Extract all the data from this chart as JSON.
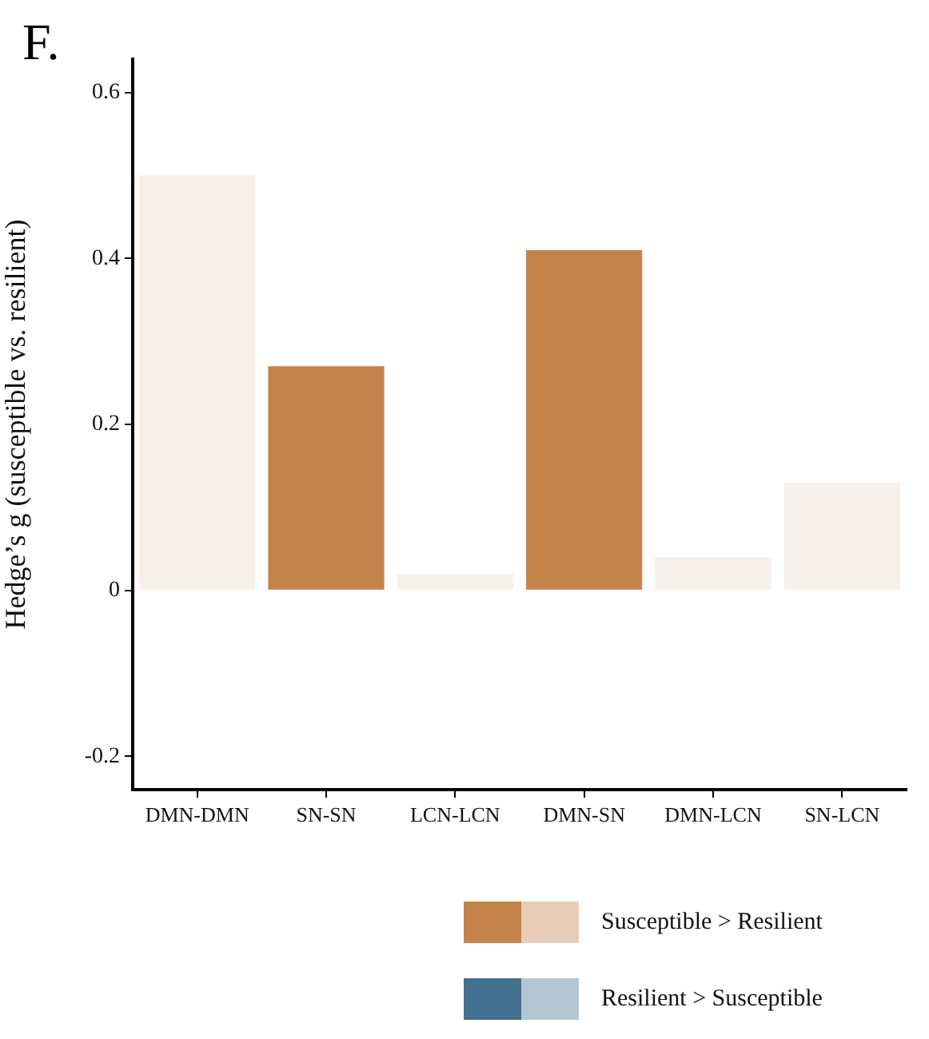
{
  "chart_data": {
    "type": "bar",
    "title": "F.",
    "ylabel": "Hedge’s g (susceptible vs. resilient)",
    "categories": [
      "DMN-DMN",
      "SN-SN",
      "LCN-LCN",
      "DMN-SN",
      "DMN-LCN",
      "SN-LCN"
    ],
    "series": [
      {
        "name": "Susceptible > Resilient",
        "color": "#c4834b",
        "colors": [
          "#f7efea",
          "#c4834b",
          "#f7efea",
          "#c4834b",
          "#f7efea",
          "#f7efea"
        ],
        "values": [
          0.5,
          0.27,
          0.02,
          0.41,
          0.04,
          0.13
        ]
      },
      {
        "name": "Resilient > Susceptible",
        "color": "#44708f",
        "values": [
          null,
          null,
          null,
          null,
          null,
          null
        ]
      }
    ],
    "ylim": [
      -0.24,
      0.64
    ],
    "yticks": [
      -0.2,
      0,
      0.2,
      0.4,
      0.6
    ],
    "grid": false,
    "legend": "bottom right"
  }
}
